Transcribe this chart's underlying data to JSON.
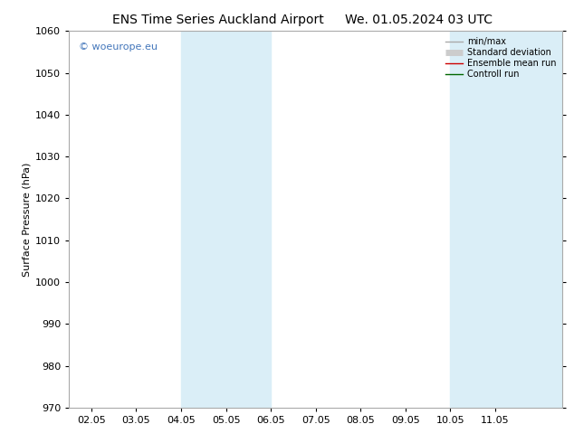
{
  "title_left": "ENS Time Series Auckland Airport",
  "title_right": "We. 01.05.2024 03 UTC",
  "ylabel": "Surface Pressure (hPa)",
  "ylim": [
    970,
    1060
  ],
  "yticks": [
    970,
    980,
    990,
    1000,
    1010,
    1020,
    1030,
    1040,
    1050,
    1060
  ],
  "xtick_labels": [
    "02.05",
    "03.05",
    "04.05",
    "05.05",
    "06.05",
    "07.05",
    "08.05",
    "09.05",
    "10.05",
    "11.05"
  ],
  "xtick_positions": [
    1,
    2,
    3,
    4,
    5,
    6,
    7,
    8,
    9,
    10
  ],
  "xlim": [
    0.5,
    11.5
  ],
  "shaded_bands": [
    {
      "xstart": 3.0,
      "xend": 5.0,
      "color": "#daeef7"
    },
    {
      "xstart": 9.0,
      "xend": 11.5,
      "color": "#daeef7"
    }
  ],
  "background_color": "#ffffff",
  "plot_bg_color": "#ffffff",
  "watermark": "© woeurope.eu",
  "watermark_color": "#4477bb",
  "legend_items": [
    {
      "label": "min/max",
      "color": "#aaaaaa",
      "lw": 1.0,
      "style": "-"
    },
    {
      "label": "Standard deviation",
      "color": "#cccccc",
      "lw": 5,
      "style": "-"
    },
    {
      "label": "Ensemble mean run",
      "color": "#cc0000",
      "lw": 1.0,
      "style": "-"
    },
    {
      "label": "Controll run",
      "color": "#006600",
      "lw": 1.0,
      "style": "-"
    }
  ],
  "figsize": [
    6.34,
    4.9
  ],
  "dpi": 100,
  "title_fontsize": 10,
  "axis_fontsize": 8,
  "tick_fontsize": 8,
  "spine_color": "#aaaaaa"
}
